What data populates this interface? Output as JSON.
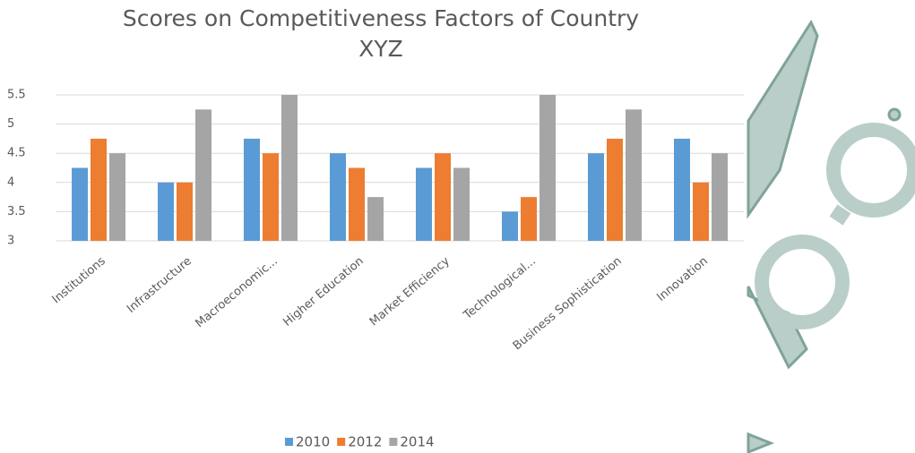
{
  "chart_data": {
    "type": "bar",
    "title": "Scores on Competitiveness Factors of Country XYZ",
    "categories": [
      "Institutions",
      "Infrastructure",
      "Macroeconomic...",
      "Higher Education",
      "Market Efficiency",
      "Technological...",
      "Business Sophistication",
      "Innovation"
    ],
    "series": [
      {
        "name": "2010",
        "color": "#5b9bd5",
        "values": [
          4.25,
          4,
          4.75,
          4.5,
          4.25,
          3.5,
          4.5,
          4.75
        ]
      },
      {
        "name": "2012",
        "color": "#ed7d31",
        "values": [
          4.75,
          4,
          4.5,
          4.25,
          4.5,
          3.75,
          4.75,
          4
        ]
      },
      {
        "name": "2014",
        "color": "#a5a5a5",
        "values": [
          4.5,
          5.25,
          5.5,
          3.75,
          4.25,
          5.5,
          5.25,
          4.5
        ]
      }
    ],
    "ylim": [
      3,
      5.5
    ],
    "yticks": [
      3,
      3.5,
      4,
      4.5,
      5,
      5.5
    ],
    "grid": true,
    "legend": "bottom"
  }
}
